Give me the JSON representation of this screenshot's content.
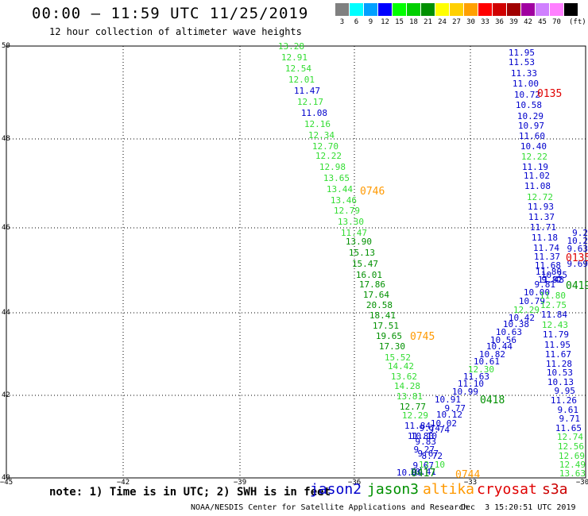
{
  "header": {
    "title": "00:00 – 11:59 UTC 11/25/2019",
    "subtitle": "12 hour collection of altimeter wave heights"
  },
  "scale": {
    "unit": "(ft)",
    "entries": [
      {
        "label": "3",
        "color": "#808080"
      },
      {
        "label": "6",
        "color": "#00ffff"
      },
      {
        "label": "9",
        "color": "#00a0ff"
      },
      {
        "label": "12",
        "color": "#0000ff"
      },
      {
        "label": "15",
        "color": "#00ff00"
      },
      {
        "label": "18",
        "color": "#00d000"
      },
      {
        "label": "21",
        "color": "#009000"
      },
      {
        "label": "24",
        "color": "#ffff00"
      },
      {
        "label": "27",
        "color": "#ffd000"
      },
      {
        "label": "30",
        "color": "#ffa000"
      },
      {
        "label": "33",
        "color": "#ff0000"
      },
      {
        "label": "36",
        "color": "#d00000"
      },
      {
        "label": "39",
        "color": "#a00000"
      },
      {
        "label": "42",
        "color": "#a000a0"
      },
      {
        "label": "45",
        "color": "#d080ff"
      },
      {
        "label": "70",
        "color": "#ff80ff"
      },
      {
        "label": "",
        "color": "#000000"
      }
    ]
  },
  "map": {
    "lon_ticks": [
      "−45",
      "−42",
      "−39",
      "−36",
      "−33",
      "−30"
    ],
    "lat_ticks": [
      "40",
      "42",
      "44",
      "46",
      "48",
      "50"
    ]
  },
  "tracks": {
    "track_a": [
      "13.28",
      "12.91",
      "12.54",
      "12.01",
      "11.47",
      "12.17",
      "11.08",
      "12.16",
      "12.34",
      "12.70",
      "12.22",
      "12.98",
      "13.65",
      "13.44",
      "13.46",
      "12.79",
      "13.30",
      "11.47",
      "13.90",
      "15.13",
      "15.47",
      "16.01",
      "17.86",
      "17.64",
      "20.58",
      "18.41",
      "17.51",
      "19.65",
      "17.30",
      "15.52",
      "14.42",
      "13.62",
      "14.28",
      "13.81",
      "12.77",
      "12.29",
      "11.84",
      "11.80",
      "10.10",
      "9.74",
      "9.83",
      "9.27",
      "9.67",
      "8.72",
      "9.67",
      "10.19",
      "10.41",
      "12.10"
    ],
    "track_a_colors": [
      "g",
      "g",
      "g",
      "g",
      "b",
      "g",
      "b",
      "g",
      "g",
      "g",
      "g",
      "g",
      "g",
      "g",
      "g",
      "g",
      "g",
      "g",
      "d",
      "d",
      "d",
      "d",
      "d",
      "d",
      "d",
      "d",
      "d",
      "d",
      "d",
      "g",
      "g",
      "g",
      "g",
      "g",
      "d",
      "g",
      "b",
      "b",
      "b",
      "b",
      "b",
      "b",
      "b",
      "b",
      "b",
      "b",
      "b",
      "g"
    ],
    "track_b": [
      "10.91",
      "9.77",
      "10.12",
      "10.02",
      "9.74",
      "10.99",
      "11.10",
      "11.63",
      "12.30",
      "10.61",
      "10.82",
      "10.44",
      "10.56",
      "10.63",
      "10.38",
      "10.42",
      "12.29",
      "10.79",
      "10.00",
      "9.81",
      "9.82",
      "10.25"
    ],
    "track_b_colors": [
      "b",
      "b",
      "b",
      "b",
      "b",
      "b",
      "b",
      "b",
      "g",
      "b",
      "b",
      "b",
      "b",
      "b",
      "b",
      "b",
      "g",
      "b",
      "b",
      "b",
      "b",
      "b"
    ],
    "track_c": [
      "11.95",
      "11.53",
      "11.33",
      "11.00",
      "10.72",
      "10.58",
      "10.29",
      "10.97",
      "11.60",
      "10.40",
      "12.22",
      "11.19",
      "11.02",
      "11.08",
      "12.72",
      "11.93",
      "11.37",
      "11.71",
      "11.18",
      "11.74",
      "11.37",
      "11.68",
      "11.80",
      "11.48",
      "11.80",
      "12.75",
      "11.84",
      "12.43",
      "11.79",
      "11.95",
      "11.67",
      "11.28",
      "10.53",
      "10.13",
      "9.95",
      "11.26",
      "9.61",
      "9.71",
      "11.65",
      "12.74",
      "12.56",
      "12.69",
      "12.49",
      "13.63"
    ],
    "track_c_colors": [
      "b",
      "b",
      "b",
      "b",
      "b",
      "b",
      "b",
      "b",
      "b",
      "b",
      "g",
      "b",
      "b",
      "b",
      "g",
      "b",
      "b",
      "b",
      "b",
      "b",
      "b",
      "b",
      "b",
      "b",
      "g",
      "g",
      "b",
      "g",
      "b",
      "b",
      "b",
      "b",
      "b",
      "b",
      "b",
      "b",
      "b",
      "b",
      "b",
      "g",
      "g",
      "g",
      "g",
      "g"
    ],
    "track_d": [
      "9.2",
      "10.2",
      "9.63",
      "9.69"
    ],
    "track_d_colors": [
      "b",
      "b",
      "b",
      "b"
    ]
  },
  "times": [
    {
      "label": "0135",
      "color": "#e00000"
    },
    {
      "label": "0746",
      "color": "#ff9900"
    },
    {
      "label": "0745",
      "color": "#ff9900"
    },
    {
      "label": "0418",
      "color": "#009000"
    },
    {
      "label": "0419",
      "color": "#009000"
    },
    {
      "label": "0417",
      "color": "#009000"
    },
    {
      "label": "0744",
      "color": "#ff9900"
    },
    {
      "label": "0135",
      "color": "#e00000"
    }
  ],
  "notes": {
    "text": "note: 1) Time is in UTC; 2) SWH is in feet",
    "satellites": [
      {
        "label": "jason2",
        "color": "#0000cc"
      },
      {
        "label": "jason3",
        "color": "#009000"
      },
      {
        "label": "altika",
        "color": "#ff9900"
      },
      {
        "label": "cryosat",
        "color": "#e00000"
      },
      {
        "label": "s3a",
        "color": "#cc0000"
      }
    ]
  },
  "footer": {
    "center": "NOAA/NESDIS Center for Satellite Applications and Research",
    "timestamp": "Dec  3 15:20:51 UTC 2019"
  },
  "colors": {
    "b": "#0000cc",
    "g": "#33dd33",
    "d": "#009000"
  }
}
